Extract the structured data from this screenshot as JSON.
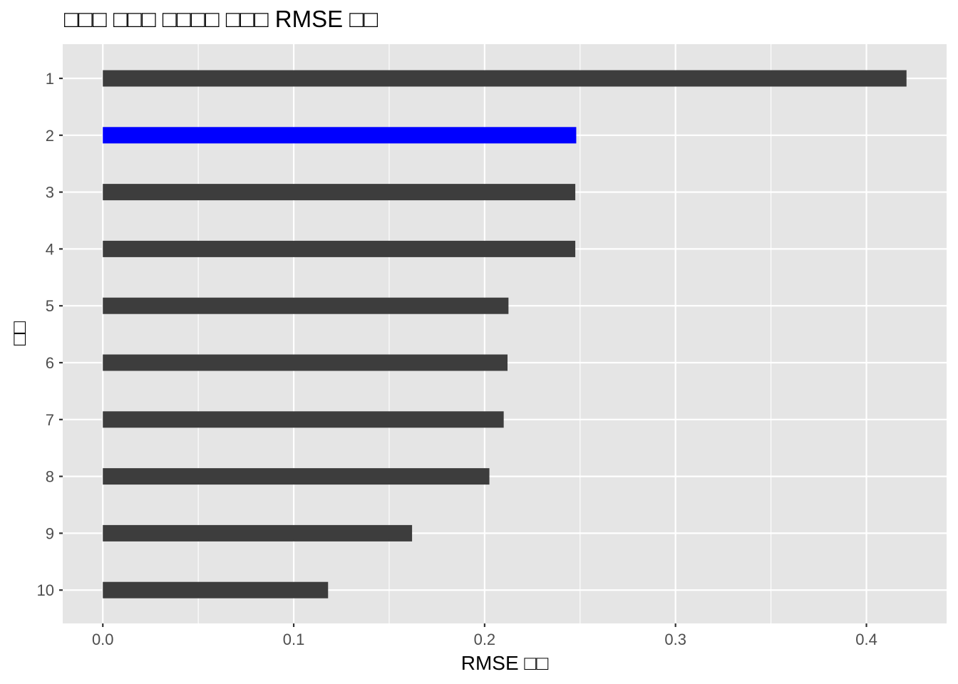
{
  "chart_data": {
    "type": "bar",
    "orientation": "horizontal",
    "title": "□□□ □□□ □□□□ □□□ RMSE □□",
    "xlabel": "RMSE □□",
    "ylabel": "□□",
    "categories": [
      "1",
      "2",
      "3",
      "4",
      "5",
      "6",
      "7",
      "8",
      "9",
      "10"
    ],
    "values": [
      0.421,
      0.248,
      0.2475,
      0.2475,
      0.2125,
      0.212,
      0.21,
      0.2025,
      0.162,
      0.118
    ],
    "highlight_index": 1,
    "xlim": [
      -0.021,
      0.442
    ],
    "x_ticks": [
      0.0,
      0.1,
      0.2,
      0.3,
      0.4
    ],
    "x_tick_labels": [
      "0.0",
      "0.1",
      "0.2",
      "0.3",
      "0.4"
    ],
    "x_minor_ticks": [
      0.05,
      0.15,
      0.25,
      0.35
    ],
    "grid": true,
    "legend": "none",
    "colors": {
      "bar": "#3d3d3d",
      "highlight": "#0000ff",
      "panel": "#e5e5e5",
      "grid": "#ffffff"
    }
  }
}
